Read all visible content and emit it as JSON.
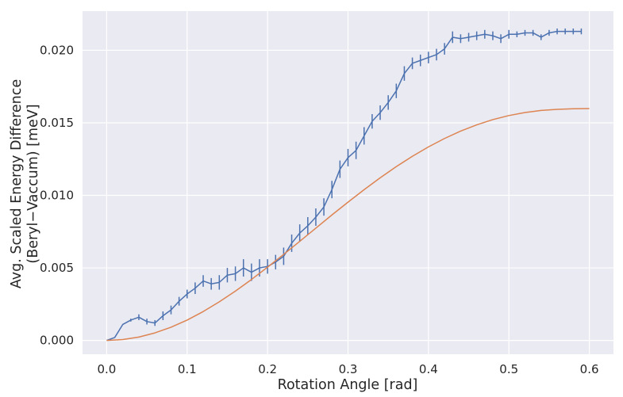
{
  "chart_data": {
    "type": "line",
    "title": "",
    "xlabel": "Rotation Angle [rad]",
    "ylabel_lines": [
      "Avg. Scaled Energy Difference",
      "(Beryl−Vaccum) [meV]"
    ],
    "xlim": [
      -0.03,
      0.63
    ],
    "ylim": [
      -0.00095,
      0.0227
    ],
    "xticks": [
      0.0,
      0.1,
      0.2,
      0.3,
      0.4,
      0.5,
      0.6
    ],
    "xtick_labels": [
      "0.0",
      "0.1",
      "0.2",
      "0.3",
      "0.4",
      "0.5",
      "0.6"
    ],
    "yticks": [
      0.0,
      0.005,
      0.01,
      0.015,
      0.02
    ],
    "ytick_labels": [
      "0.000",
      "0.005",
      "0.010",
      "0.015",
      "0.020"
    ],
    "grid": true,
    "background_color": "#eaeaf2",
    "series": [
      {
        "kind": "errorbar",
        "color": "#4c72b0",
        "x": [
          0.0,
          0.01,
          0.02,
          0.03,
          0.04,
          0.05,
          0.06,
          0.07,
          0.08,
          0.09,
          0.1,
          0.11,
          0.12,
          0.13,
          0.14,
          0.15,
          0.16,
          0.17,
          0.18,
          0.19,
          0.2,
          0.21,
          0.22,
          0.23,
          0.24,
          0.25,
          0.26,
          0.27,
          0.28,
          0.29,
          0.3,
          0.31,
          0.32,
          0.33,
          0.34,
          0.35,
          0.36,
          0.37,
          0.38,
          0.39,
          0.4,
          0.41,
          0.42,
          0.43,
          0.44,
          0.45,
          0.46,
          0.47,
          0.48,
          0.49,
          0.5,
          0.51,
          0.52,
          0.53,
          0.54,
          0.55,
          0.56,
          0.57,
          0.58,
          0.59
        ],
        "y": [
          0.0,
          0.0002,
          0.0011,
          0.0014,
          0.0016,
          0.0013,
          0.0012,
          0.0017,
          0.0021,
          0.0027,
          0.0032,
          0.0036,
          0.0041,
          0.0039,
          0.004,
          0.0045,
          0.0046,
          0.005,
          0.0047,
          0.005,
          0.0051,
          0.0054,
          0.0058,
          0.0067,
          0.0074,
          0.0079,
          0.0085,
          0.0092,
          0.0104,
          0.0118,
          0.0126,
          0.0131,
          0.0141,
          0.0151,
          0.0157,
          0.0164,
          0.0172,
          0.0184,
          0.0191,
          0.0193,
          0.0195,
          0.0197,
          0.0201,
          0.0209,
          0.0208,
          0.0209,
          0.021,
          0.0211,
          0.021,
          0.0208,
          0.0211,
          0.0211,
          0.0212,
          0.0212,
          0.0209,
          0.0212,
          0.0213,
          0.0213,
          0.0213,
          0.0213
        ],
        "yerr": [
          0.0,
          0.0,
          0.0,
          0.0001,
          0.0002,
          0.0002,
          0.0002,
          0.0003,
          0.0003,
          0.0003,
          0.0003,
          0.0004,
          0.0004,
          0.0004,
          0.0005,
          0.0005,
          0.0005,
          0.0006,
          0.0006,
          0.0006,
          0.0005,
          0.0005,
          0.0006,
          0.0006,
          0.0006,
          0.0006,
          0.0006,
          0.0006,
          0.0006,
          0.0006,
          0.0006,
          0.0006,
          0.0006,
          0.0005,
          0.0005,
          0.0005,
          0.0005,
          0.0005,
          0.0004,
          0.0004,
          0.0004,
          0.0004,
          0.0004,
          0.0004,
          0.0003,
          0.0003,
          0.0003,
          0.0003,
          0.0003,
          0.0003,
          0.0003,
          0.0002,
          0.0002,
          0.0002,
          0.0002,
          0.0002,
          0.0002,
          0.0002,
          0.0002,
          0.0002
        ]
      },
      {
        "kind": "line",
        "color": "#dd8452",
        "x": [
          0.0,
          0.02,
          0.04,
          0.06,
          0.08,
          0.1,
          0.12,
          0.14,
          0.16,
          0.18,
          0.2,
          0.22,
          0.24,
          0.26,
          0.28,
          0.3,
          0.32,
          0.34,
          0.36,
          0.38,
          0.4,
          0.42,
          0.44,
          0.46,
          0.48,
          0.5,
          0.52,
          0.54,
          0.56,
          0.58,
          0.6
        ],
        "y": [
          0.0,
          6e-05,
          0.00023,
          0.00052,
          0.00091,
          0.0014,
          0.00199,
          0.00266,
          0.0034,
          0.0042,
          0.00505,
          0.00593,
          0.00683,
          0.00774,
          0.00865,
          0.00953,
          0.01039,
          0.01121,
          0.01198,
          0.01269,
          0.01334,
          0.01392,
          0.01443,
          0.01486,
          0.01522,
          0.0155,
          0.01571,
          0.01585,
          0.01593,
          0.01597,
          0.01598
        ]
      }
    ]
  }
}
